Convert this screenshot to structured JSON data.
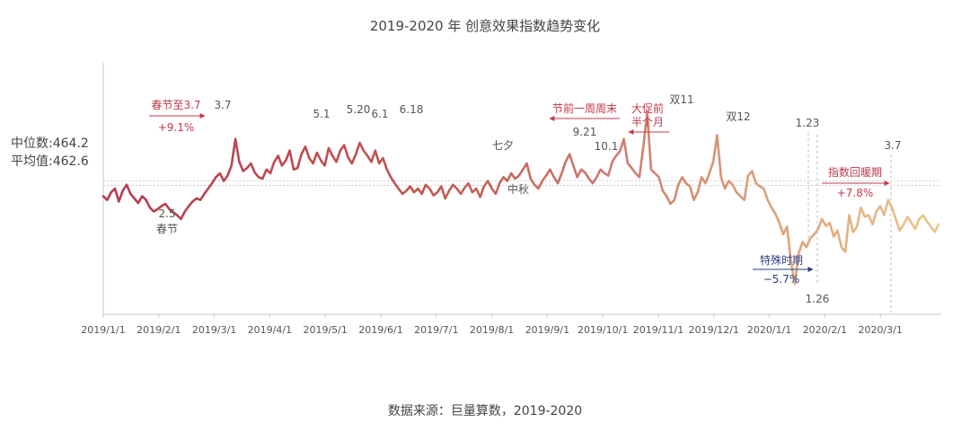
{
  "chart_data": {
    "type": "line",
    "title": "2019-2020 年   创意效果指数趋势变化",
    "source": "数据来源：巨量算数，2019-2020",
    "x_ticks": [
      "2019/1/1",
      "2019/2/1",
      "2019/3/1",
      "2019/4/1",
      "2019/5/1",
      "2019/6/1",
      "2019/7/1",
      "2019/8/1",
      "2019/9/1",
      "2019/10/1",
      "2019/11/1",
      "2019/12/1",
      "2020/1/1",
      "2020/2/1",
      "2020/3/1"
    ],
    "ylim": [
      290,
      620
    ],
    "reference_lines": [
      {
        "label": "中位数:464.2",
        "value": 464.2
      },
      {
        "label": "平均值:462.6",
        "value": 462.6
      }
    ],
    "series": [
      {
        "name": "创意效果指数",
        "start": "2019/1/1",
        "values": [
          445,
          440,
          450,
          455,
          438,
          452,
          460,
          448,
          442,
          436,
          445,
          440,
          430,
          425,
          428,
          432,
          435,
          428,
          424,
          420,
          415,
          425,
          432,
          438,
          442,
          440,
          448,
          455,
          462,
          470,
          475,
          465,
          472,
          485,
          520,
          490,
          478,
          482,
          488,
          476,
          470,
          468,
          480,
          475,
          490,
          498,
          485,
          492,
          505,
          480,
          482,
          500,
          510,
          495,
          488,
          502,
          492,
          485,
          508,
          498,
          490,
          505,
          512,
          496,
          488,
          500,
          515,
          505,
          498,
          490,
          505,
          488,
          495,
          480,
          470,
          462,
          455,
          448,
          452,
          458,
          450,
          455,
          448,
          460,
          455,
          446,
          450,
          458,
          442,
          452,
          460,
          455,
          448,
          456,
          462,
          450,
          455,
          444,
          458,
          465,
          455,
          448,
          462,
          470,
          465,
          475,
          468,
          472,
          480,
          488,
          468,
          460,
          455,
          465,
          472,
          480,
          470,
          462,
          475,
          490,
          500,
          485,
          470,
          480,
          476,
          468,
          462,
          470,
          480,
          475,
          472,
          490,
          498,
          504,
          520,
          488,
          482,
          475,
          470,
          510,
          555,
          480,
          475,
          470,
          452,
          445,
          435,
          440,
          460,
          470,
          462,
          458,
          440,
          450,
          470,
          462,
          475,
          490,
          525,
          470,
          455,
          465,
          460,
          450,
          445,
          440,
          472,
          478,
          462,
          458,
          455,
          440,
          430,
          422,
          410,
          395,
          405,
          360,
          330,
          370,
          385,
          378,
          390,
          395,
          402,
          415,
          406,
          410,
          392,
          400,
          378,
          372,
          420,
          398,
          405,
          430,
          418,
          420,
          408,
          425,
          432,
          420,
          440,
          430,
          415,
          400,
          408,
          418,
          410,
          402,
          415,
          420,
          412,
          405,
          398,
          408
        ]
      }
    ],
    "annotations": {
      "spring_fest": "春节至3.7",
      "spring_fest_pct": "+9.1%",
      "d25": "2.5",
      "d25_sub": "春节",
      "d37a": "3.7",
      "d51": "5.1",
      "d520": "5.20",
      "d61": "6.1",
      "d618": "6.18",
      "qixi": "七夕",
      "zhongqiu": "中秋",
      "d921": "9.21",
      "d101": "10.1",
      "weekend": "节前一周周末",
      "promo_1": "大促前",
      "promo_2": "半个月",
      "d1111": "双11",
      "d1212": "双12",
      "d123": "1.23",
      "special": "特殊时期",
      "special_pct": "−5.7%",
      "d126": "1.26",
      "d37b": "3.7",
      "recovery": "指数回暖期",
      "recovery_pct": "+7.8%"
    },
    "colors": {
      "start": "#b83a52",
      "mid": "#cf7d70",
      "end": "#ecc58a",
      "annotation_red": "#c0384d",
      "annotation_blue": "#2d3f7a"
    }
  }
}
